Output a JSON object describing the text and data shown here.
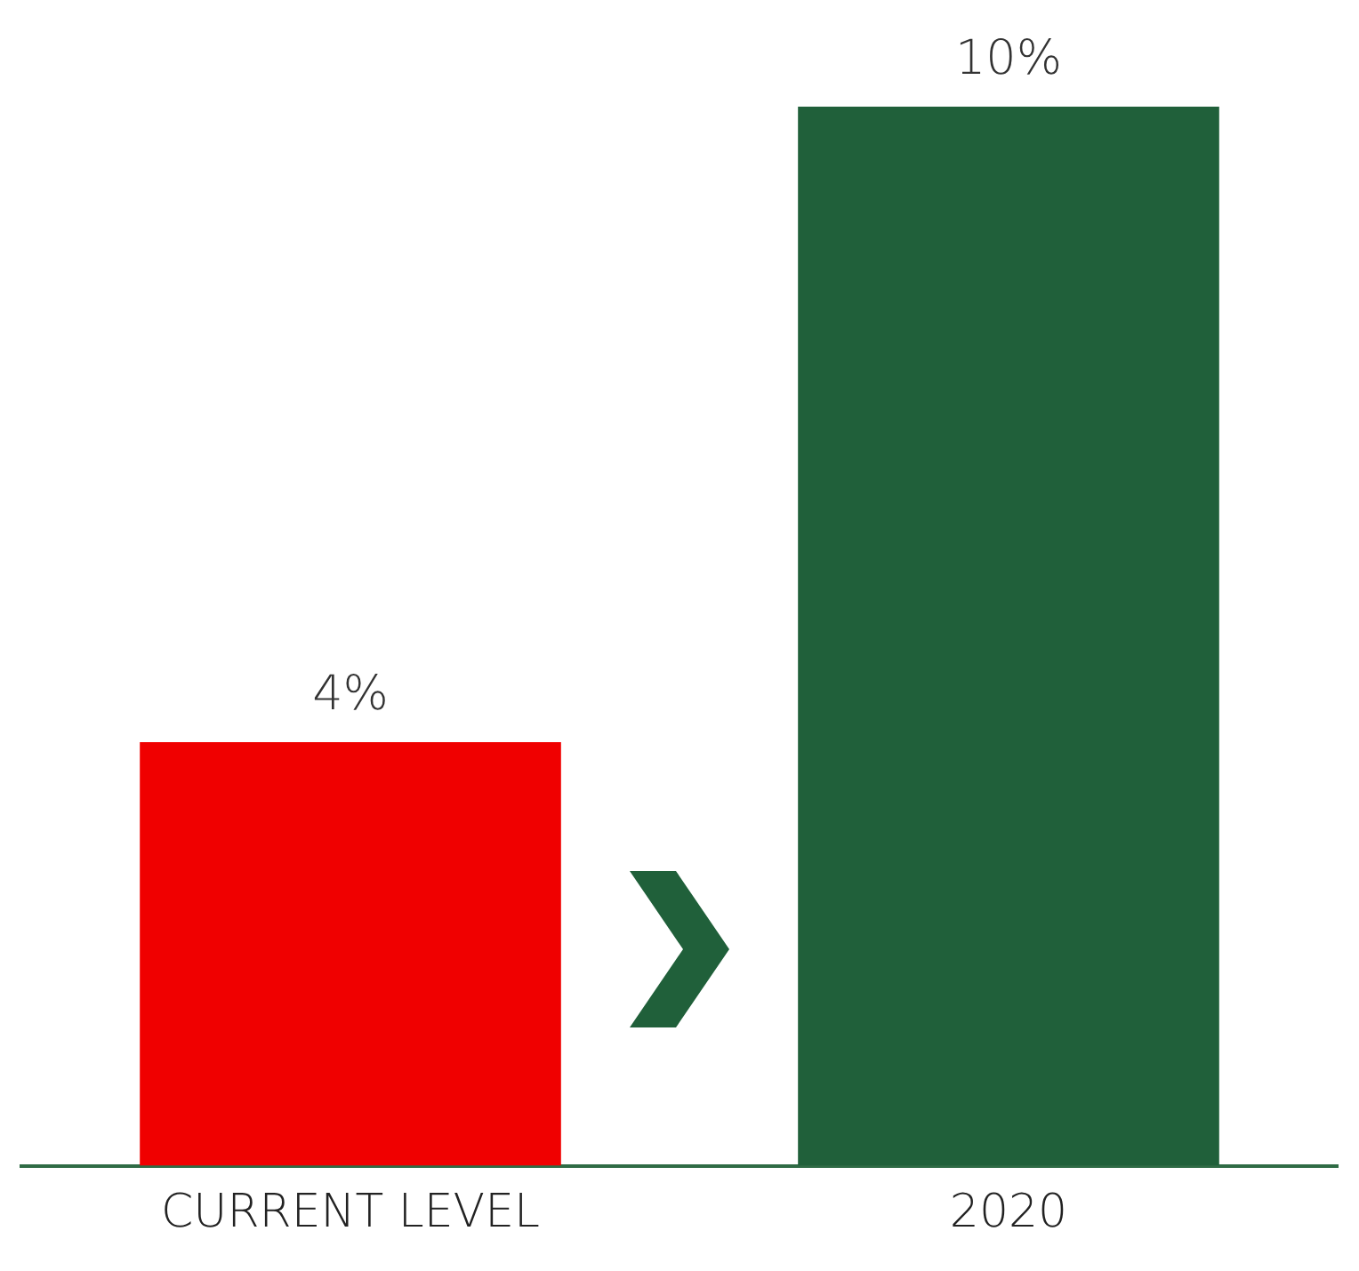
{
  "chart_data": {
    "type": "bar",
    "categories": [
      "CURRENT LEVEL",
      "2020"
    ],
    "values": [
      4,
      10
    ],
    "colors": [
      "#f00000",
      "#20603a"
    ],
    "value_labels": [
      "4%",
      "10%"
    ],
    "legend": false,
    "grid": false
  }
}
